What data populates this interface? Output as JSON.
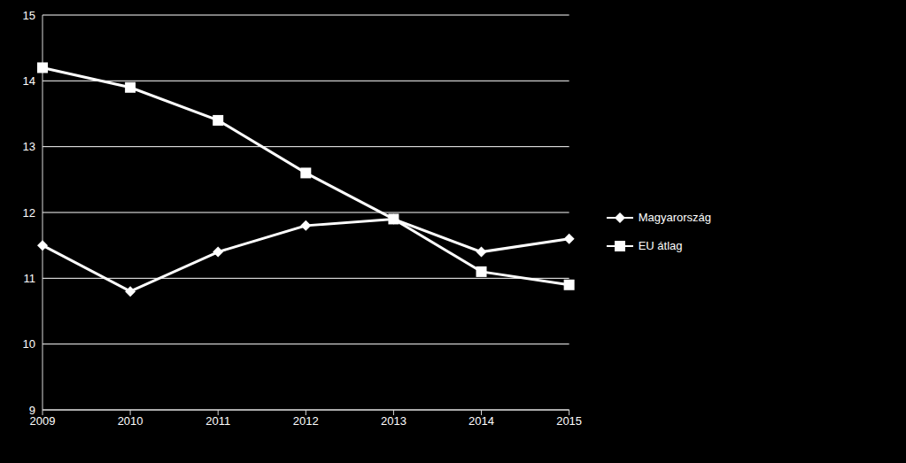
{
  "chart_data": {
    "type": "line",
    "categories": [
      "2009",
      "2010",
      "2011",
      "2012",
      "2013",
      "2014",
      "2015"
    ],
    "series": [
      {
        "name": "Magyarország",
        "color": "#ffffff",
        "marker": "diamond",
        "values": [
          11.5,
          10.8,
          11.4,
          11.8,
          11.9,
          11.4,
          11.6
        ]
      },
      {
        "name": "EU átlag",
        "color": "#ffffff",
        "marker": "square",
        "values": [
          14.2,
          13.9,
          13.4,
          12.6,
          11.9,
          11.1,
          10.9
        ]
      }
    ],
    "ylim": [
      9,
      15
    ],
    "yticks": [
      9,
      10,
      11,
      12,
      13,
      14,
      15
    ],
    "grid": true,
    "legend": "right"
  }
}
